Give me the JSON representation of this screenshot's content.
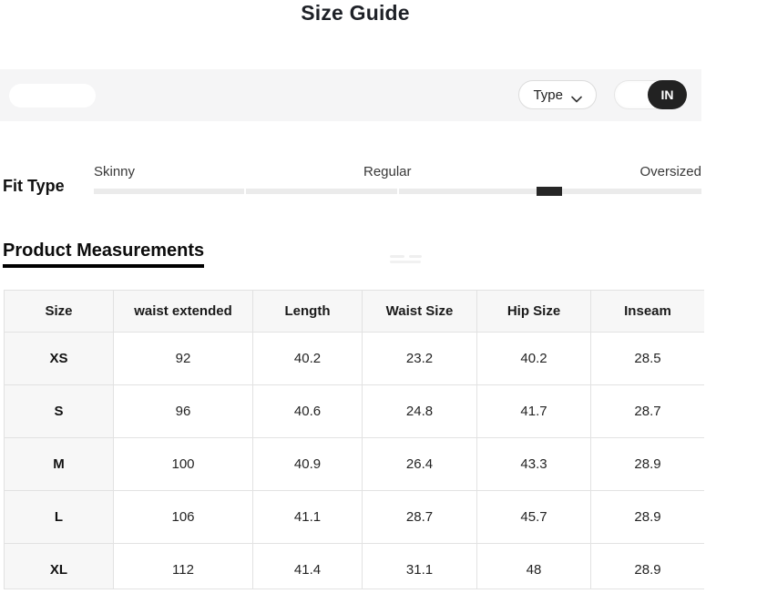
{
  "title": "Size Guide",
  "toolbar": {
    "type_button_label": "Type",
    "unit_toggle": {
      "selected": "IN",
      "options_visible": [
        "IN"
      ]
    }
  },
  "fit_type": {
    "label": "Fit Type",
    "options": [
      "Skinny",
      "Regular",
      "Oversized"
    ],
    "marker_position_percent": 75
  },
  "measurements_heading": "Product Measurements",
  "table": {
    "columns": [
      "Size",
      "waist extended",
      "Length",
      "Waist Size",
      "Hip Size",
      "Inseam"
    ],
    "rows": [
      {
        "size": "XS",
        "values": [
          "92",
          "40.2",
          "23.2",
          "40.2",
          "28.5"
        ]
      },
      {
        "size": "S",
        "values": [
          "96",
          "40.6",
          "24.8",
          "41.7",
          "28.7"
        ]
      },
      {
        "size": "M",
        "values": [
          "100",
          "40.9",
          "26.4",
          "43.3",
          "28.9"
        ]
      },
      {
        "size": "L",
        "values": [
          "106",
          "41.1",
          "28.7",
          "45.7",
          "28.9"
        ]
      },
      {
        "size": "XL",
        "values": [
          "112",
          "41.4",
          "31.1",
          "48",
          "28.9"
        ]
      }
    ]
  },
  "colors": {
    "toolbar_bg": "#f5f5f6",
    "table_header_bg": "#f7f7f7",
    "border": "#e2e2e2",
    "accent_black": "#222222",
    "slider_track": "#ebebeb",
    "slider_marker": "#262626"
  }
}
